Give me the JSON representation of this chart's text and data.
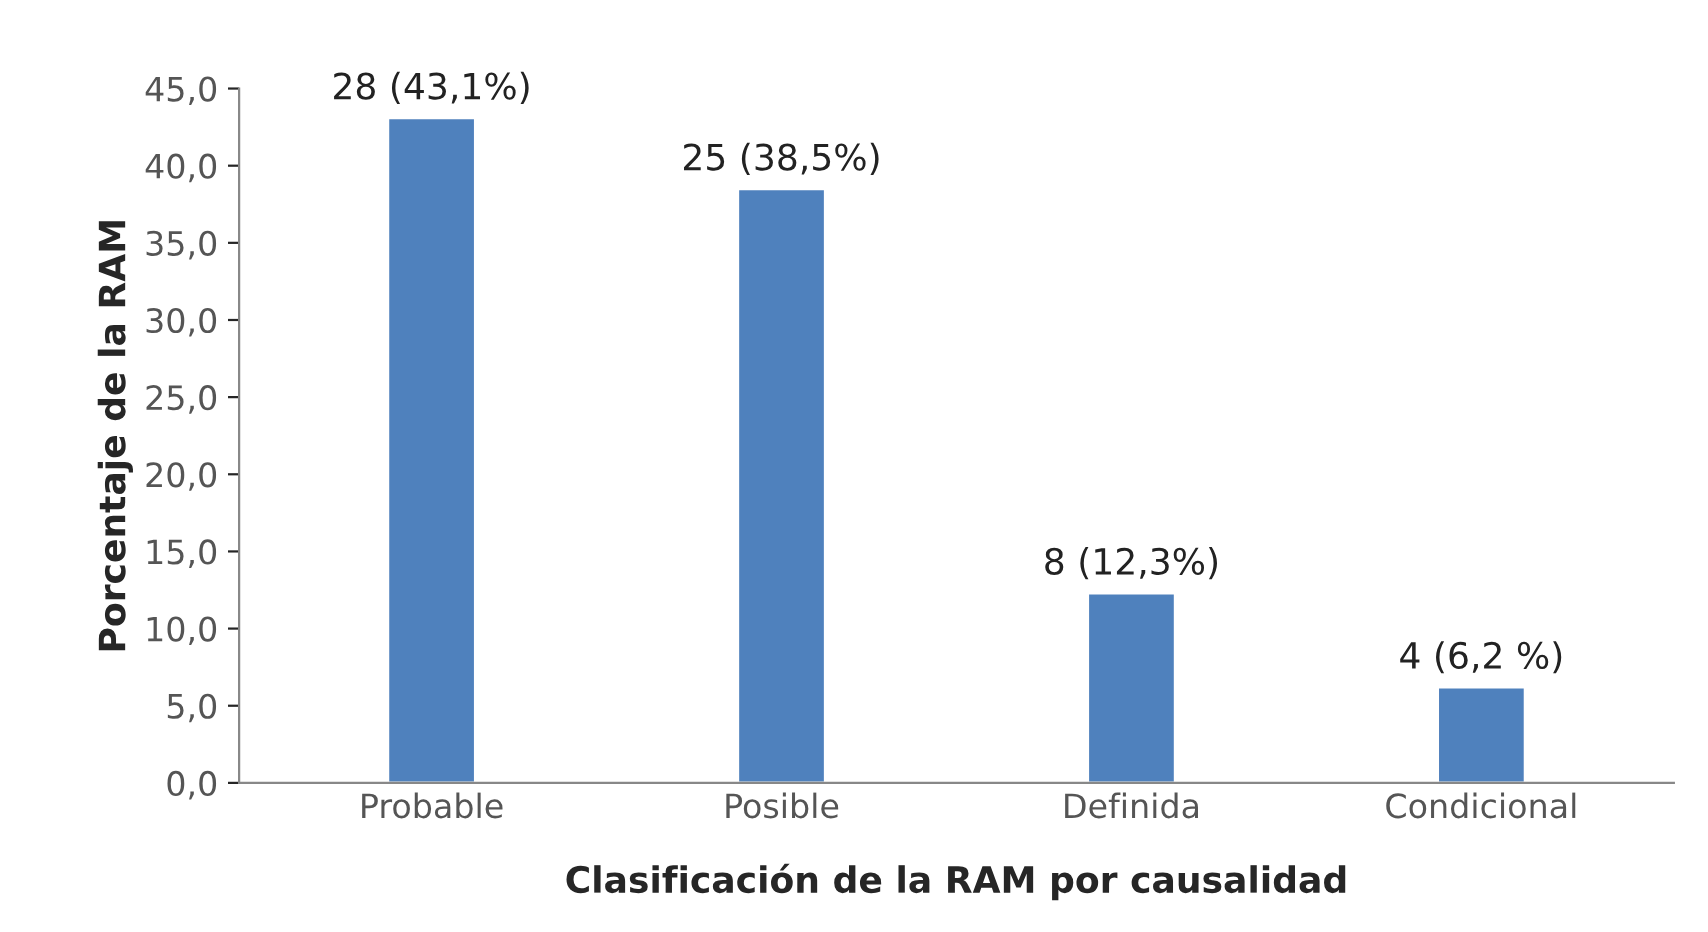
{
  "chart_data": {
    "type": "bar",
    "xlabel": "Clasificación de la RAM por causalidad",
    "ylabel": "Porcentaje de la RAM",
    "categories": [
      "Probable",
      "Posible",
      "Definida",
      "Condicional"
    ],
    "values": [
      43.1,
      38.5,
      12.3,
      6.2
    ],
    "value_labels": [
      "28 (43,1%)",
      "25 (38,5%)",
      "8 (12,3%)",
      "4 (6,2 %)"
    ],
    "color": "#4f81bd",
    "ylim": [
      0,
      45
    ],
    "yticks": [
      {
        "value": 0,
        "label": "0,0"
      },
      {
        "value": 5,
        "label": "5,0"
      },
      {
        "value": 10,
        "label": "10,0"
      },
      {
        "value": 15,
        "label": "15,0"
      },
      {
        "value": 20,
        "label": "20,0"
      },
      {
        "value": 25,
        "label": "25,0"
      },
      {
        "value": 30,
        "label": "30,0"
      },
      {
        "value": 35,
        "label": "35,0"
      },
      {
        "value": 40,
        "label": "40,0"
      },
      {
        "value": 45,
        "label": "45,0"
      }
    ],
    "grid": false,
    "legend": false
  }
}
